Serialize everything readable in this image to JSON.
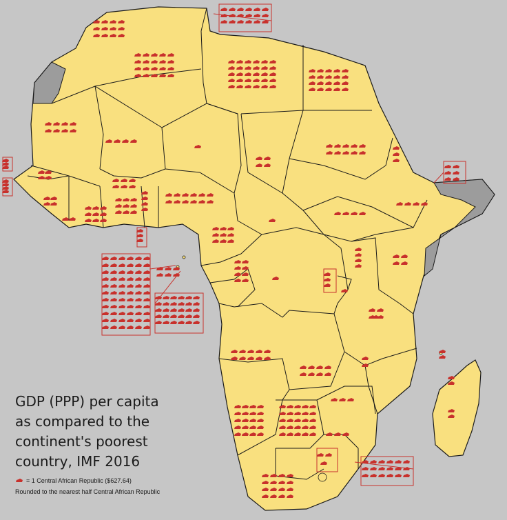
{
  "title_lines": [
    "GDP (PPP) per capita",
    "as compared to the",
    "continent's poorest",
    "country, IMF 2016"
  ],
  "legend": {
    "unit_label": "= 1 Central African Republic ($627.64)",
    "rounding_note": "Rounded to the nearest half Central African Republic",
    "unit_icon": "central-african-republic-silhouette-icon"
  },
  "colors": {
    "ocean": "#c6c6c6",
    "land": "#f9e07f",
    "no_data": "#9c9c9c",
    "border": "#1a1a1a",
    "icon": "#c8312c",
    "callout_box": "#c8312c"
  }
}
